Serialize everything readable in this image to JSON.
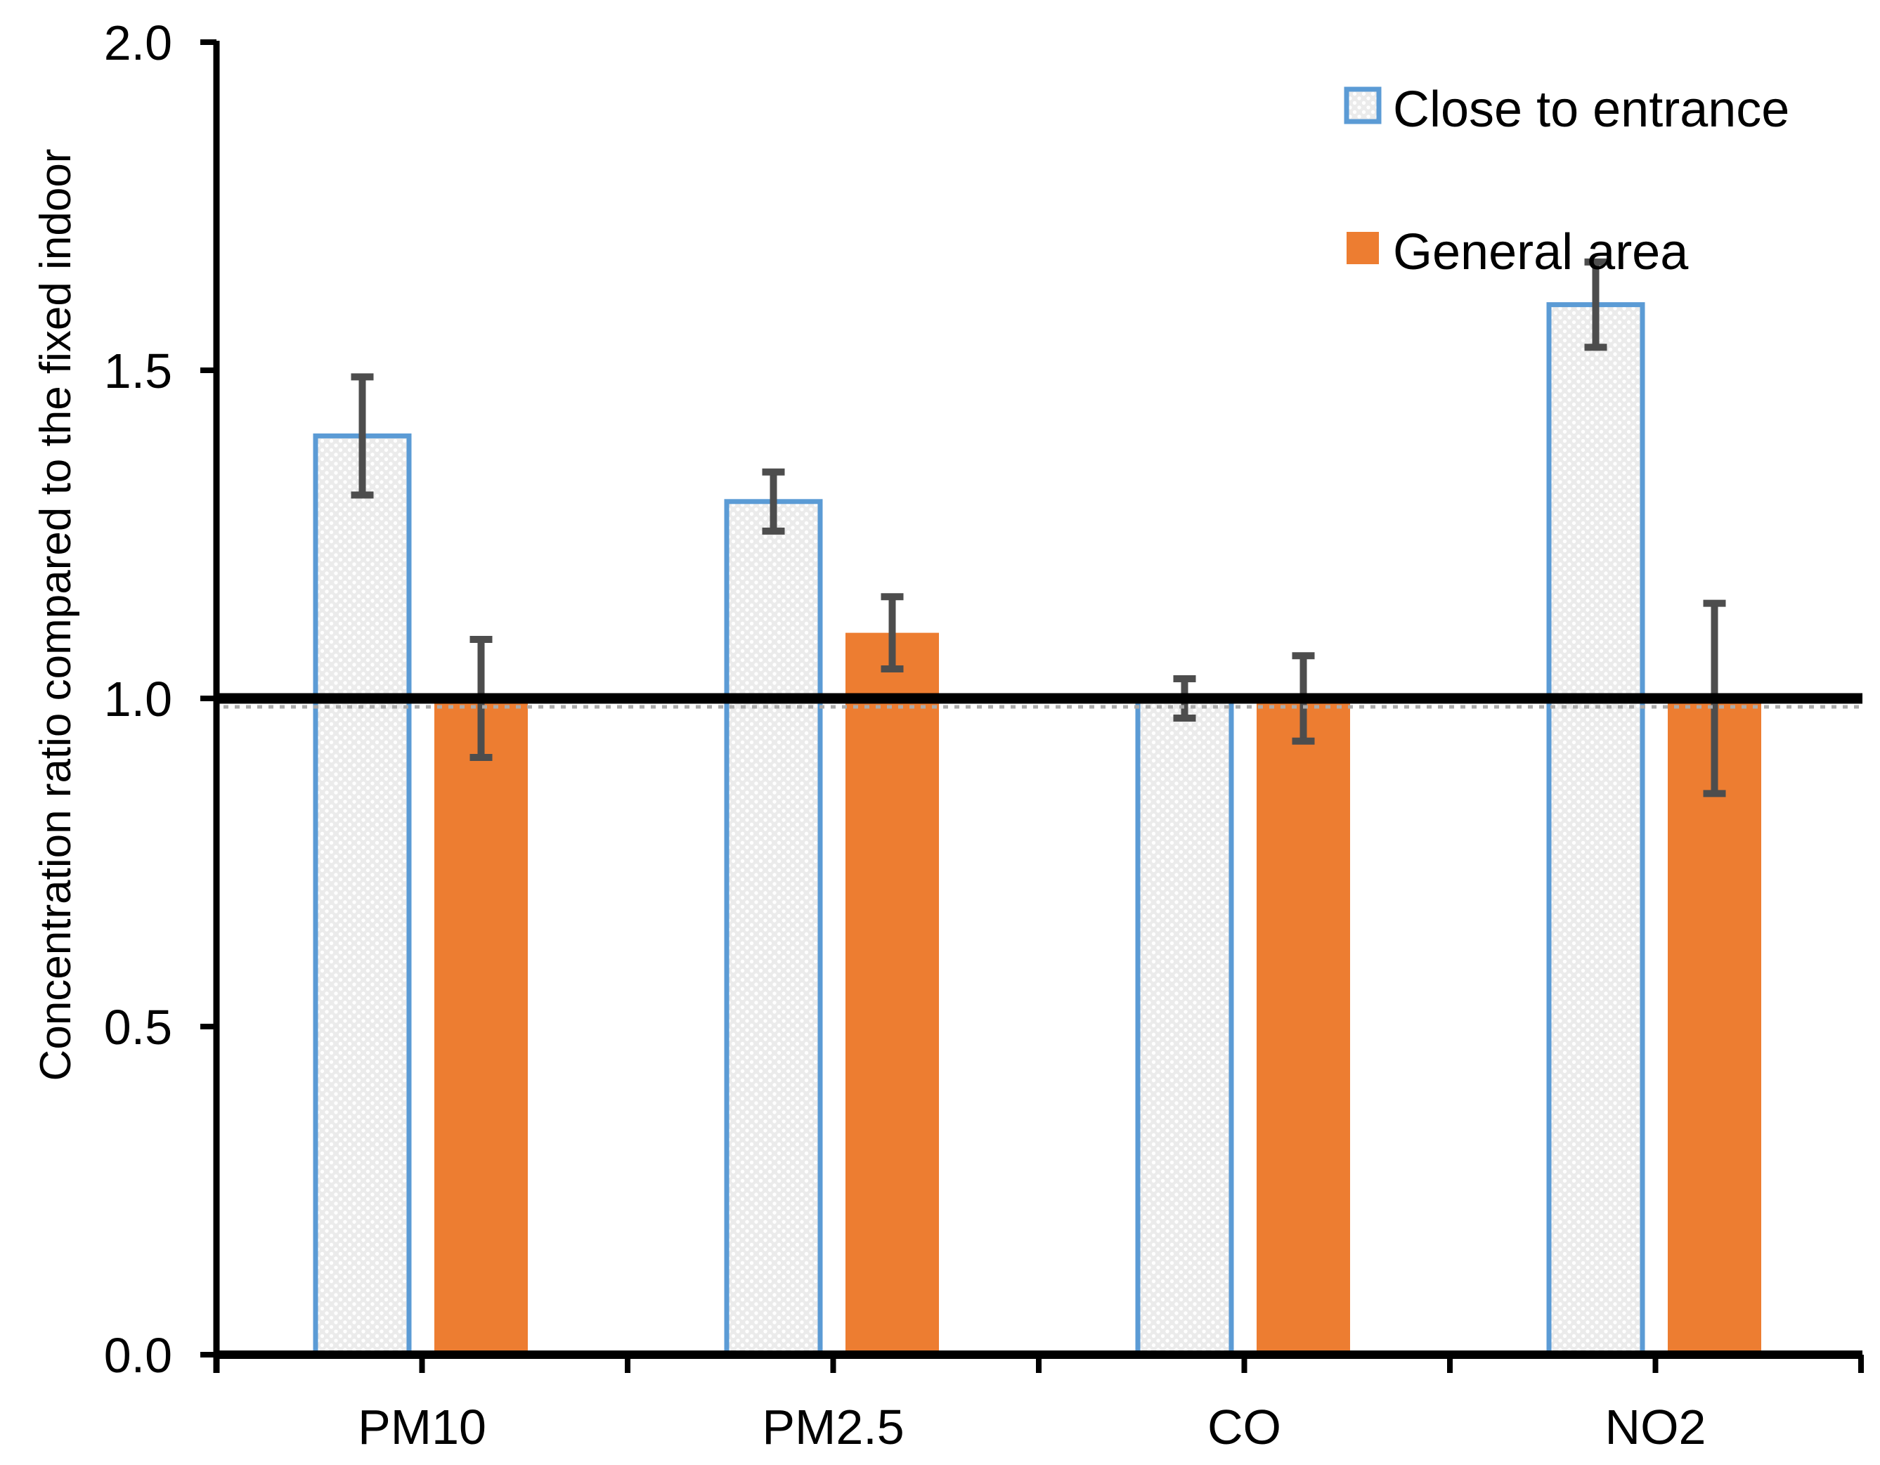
{
  "chart_data": {
    "type": "bar",
    "title": "",
    "xlabel": "",
    "ylabel": "Concentration ratio compared to the fixed indoor",
    "ylim": [
      0.0,
      2.0
    ],
    "yticks": [
      0.0,
      0.5,
      1.0,
      1.5,
      2.0
    ],
    "ytick_labels": [
      "0.0",
      "0.5",
      "1.0",
      "1.5",
      "2.0"
    ],
    "categories": [
      "PM10",
      "PM2.5",
      "CO",
      "NO2"
    ],
    "series": [
      {
        "name": "Close to entrance",
        "values": [
          1.4,
          1.3,
          1.0,
          1.6
        ],
        "errors": [
          0.09,
          0.045,
          0.03,
          0.065
        ],
        "fill_style": "dotted-pattern",
        "fill_color": "#EBEBEB",
        "dot_color": "#FFFFFF",
        "border_color": "#5B9BD5"
      },
      {
        "name": "General area",
        "values": [
          1.0,
          1.1,
          1.0,
          1.0
        ],
        "errors": [
          0.09,
          0.055,
          0.065,
          0.145
        ],
        "fill_style": "solid",
        "fill_color": "#ED7D31",
        "border_color": "#ED7D31"
      }
    ],
    "error_bar_color": "#4D4D4D",
    "reference_line": {
      "y": 1.0,
      "color": "#000000",
      "underlay_dash_color": "#ABABAB"
    },
    "axis_color": "#000000",
    "legend_position": "top-right",
    "grid": false
  }
}
